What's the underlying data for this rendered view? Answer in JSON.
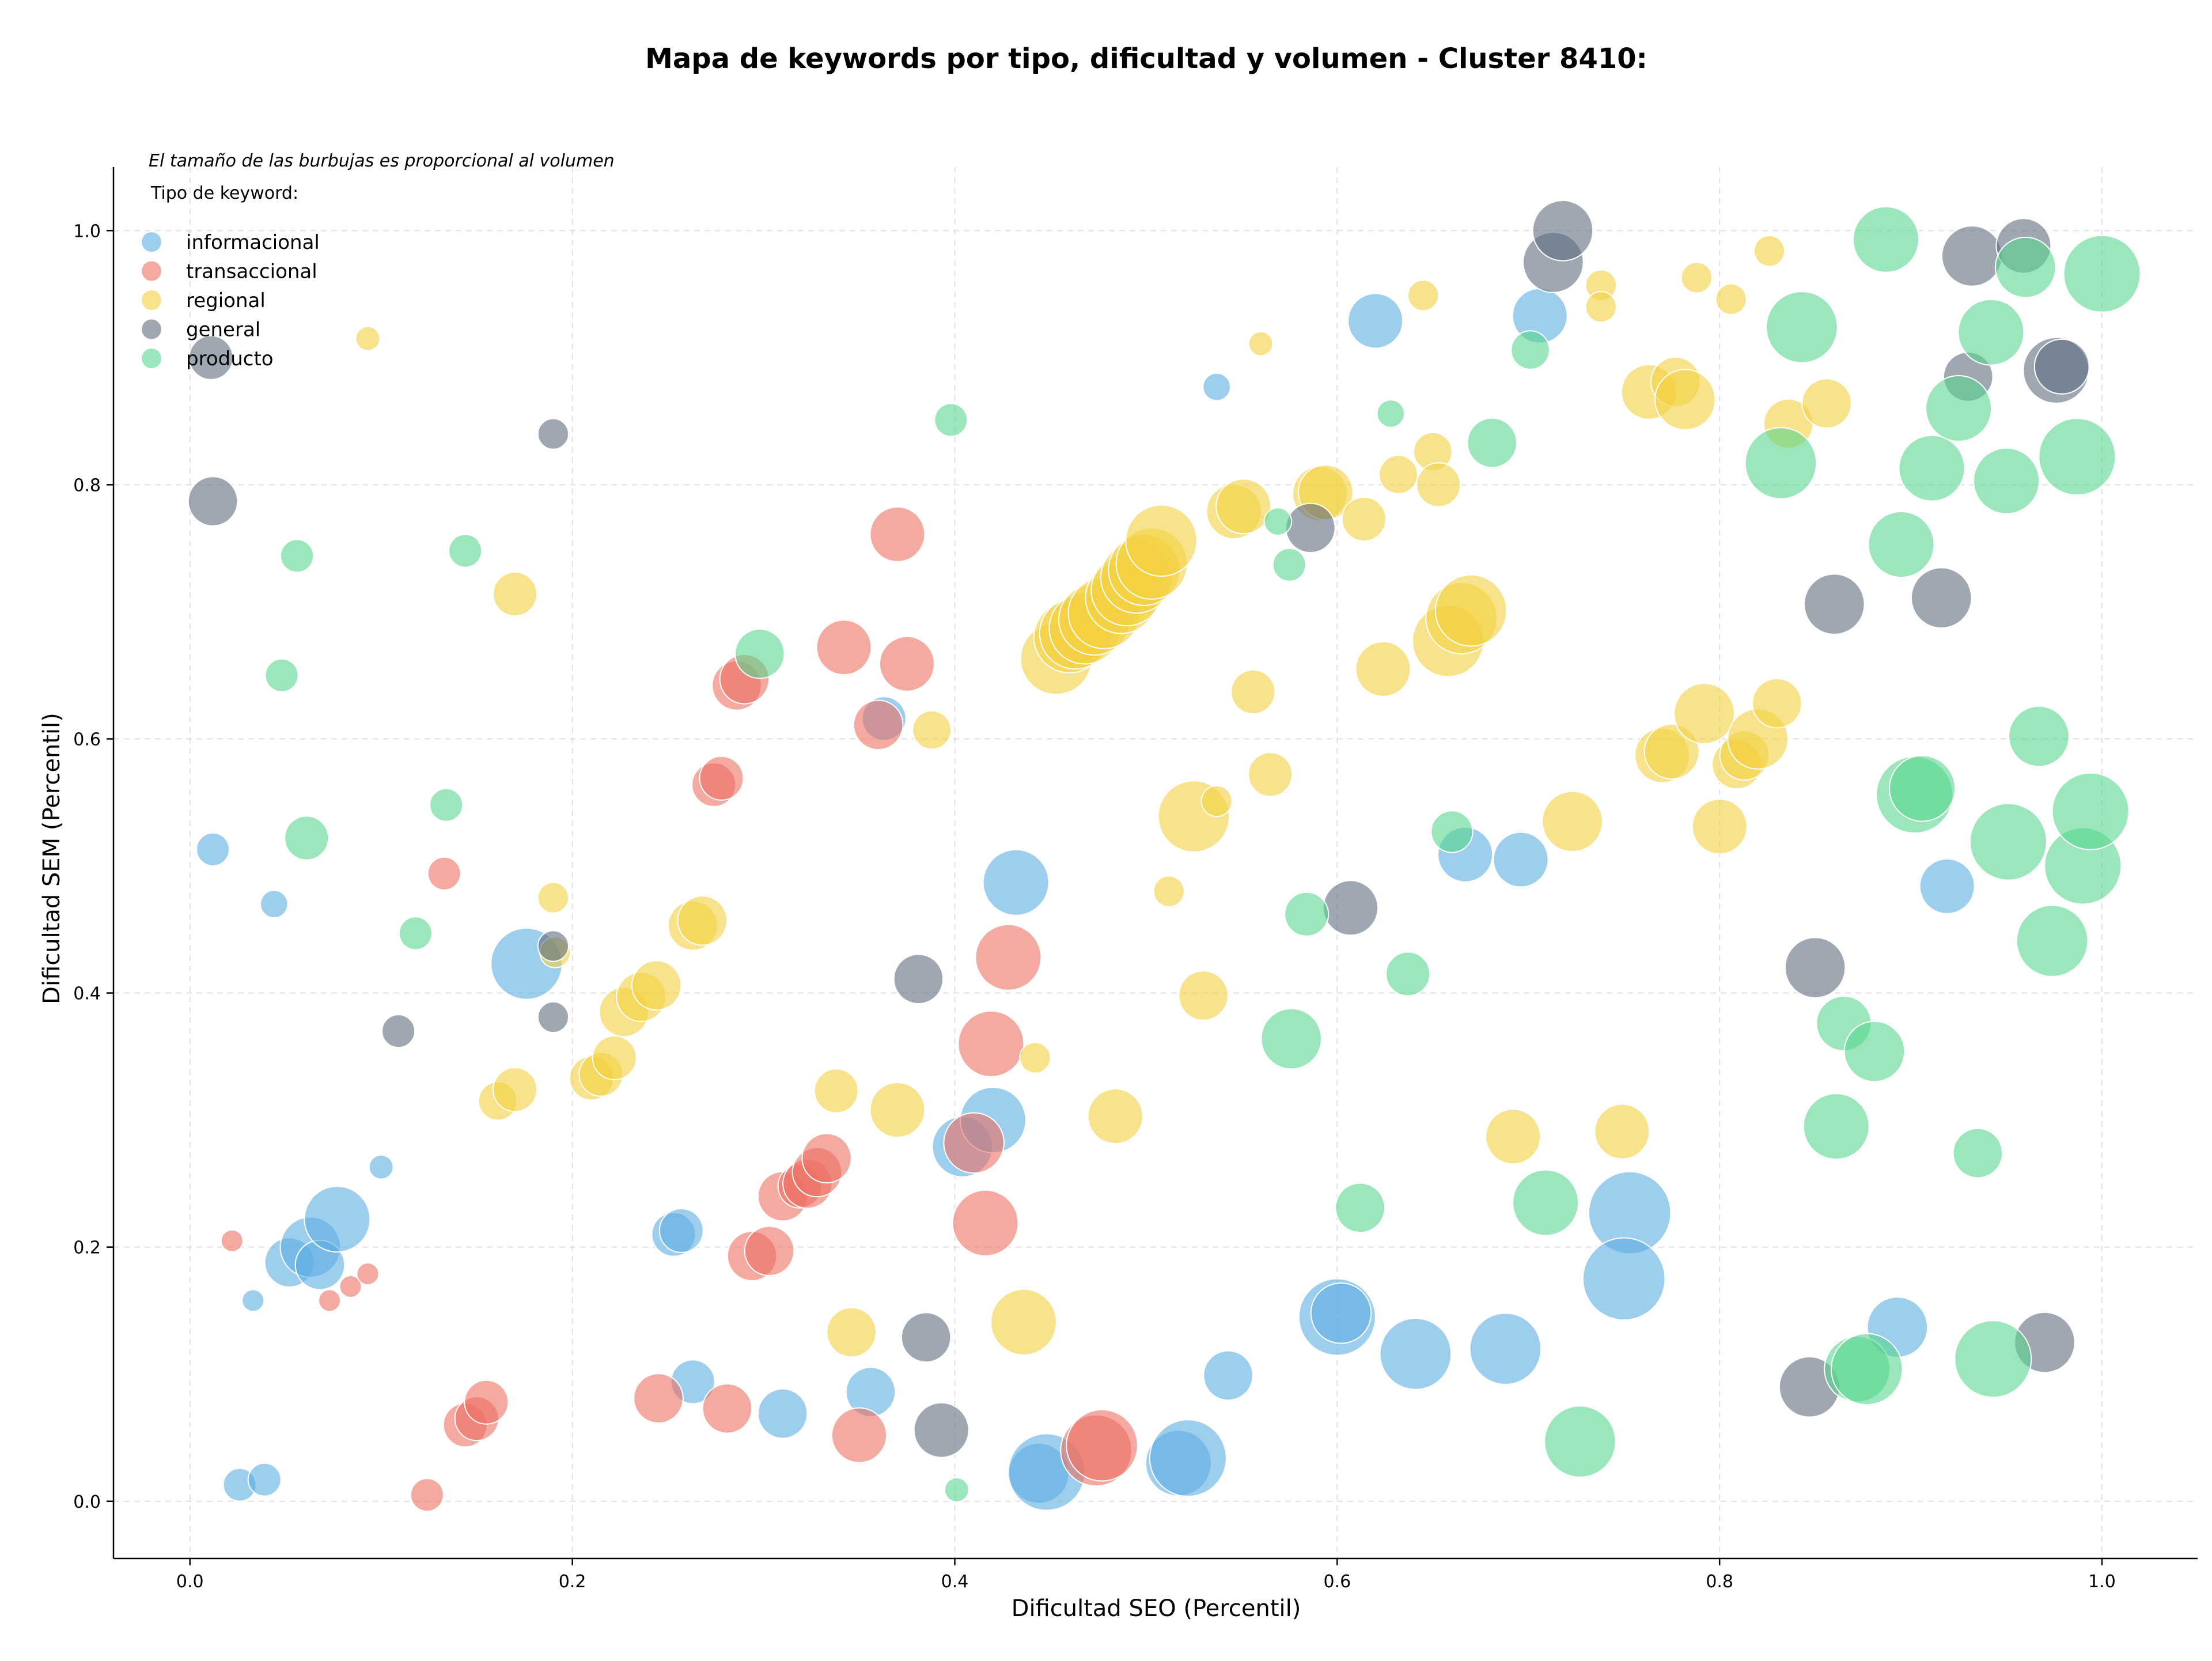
{
  "chart_data": {
    "type": "scatter",
    "title": "Mapa de keywords por tipo, dificultad y volumen - Cluster 8410:",
    "xlabel": "Dificultad SEO (Percentil)",
    "ylabel": "Dificultad SEM (Percentil)",
    "note": "El tamaño de las burbujas es proporcional al volumen",
    "xlim": [
      -0.04,
      1.05
    ],
    "ylim": [
      -0.045,
      1.05
    ],
    "x_ticks": [
      "0.0",
      "0.2",
      "0.4",
      "0.6",
      "0.8",
      "1.0"
    ],
    "y_ticks": [
      "0.0",
      "0.2",
      "0.4",
      "0.6",
      "0.8",
      "1.0"
    ],
    "grid": true,
    "legend": {
      "title": "Tipo de keyword:",
      "position": "top-left"
    },
    "series": [
      {
        "name": "informacional",
        "color": "#5DADE2",
        "points": [
          [
            0.012,
            0.513,
            0.3
          ],
          [
            0.044,
            0.47,
            0.25
          ],
          [
            0.026,
            0.013,
            0.3
          ],
          [
            0.039,
            0.017,
            0.3
          ],
          [
            0.033,
            0.158,
            0.2
          ],
          [
            0.052,
            0.188,
            0.45
          ],
          [
            0.063,
            0.2,
            0.55
          ],
          [
            0.068,
            0.186,
            0.45
          ],
          [
            0.077,
            0.222,
            0.6
          ],
          [
            0.1,
            0.263,
            0.22
          ],
          [
            0.176,
            0.423,
            0.65
          ],
          [
            0.253,
            0.21,
            0.4
          ],
          [
            0.257,
            0.213,
            0.4
          ],
          [
            0.263,
            0.094,
            0.4
          ],
          [
            0.31,
            0.069,
            0.45
          ],
          [
            0.356,
            0.086,
            0.45
          ],
          [
            0.363,
            0.616,
            0.4
          ],
          [
            0.404,
            0.279,
            0.55
          ],
          [
            0.42,
            0.3,
            0.6
          ],
          [
            0.432,
            0.487,
            0.6
          ],
          [
            0.444,
            0.022,
            0.55
          ],
          [
            0.448,
            0.023,
            0.7
          ],
          [
            0.517,
            0.03,
            0.6
          ],
          [
            0.522,
            0.034,
            0.7
          ],
          [
            0.543,
            0.099,
            0.45
          ],
          [
            0.537,
            0.877,
            0.25
          ],
          [
            0.6,
            0.145,
            0.7
          ],
          [
            0.602,
            0.148,
            0.55
          ],
          [
            0.62,
            0.929,
            0.5
          ],
          [
            0.641,
            0.116,
            0.65
          ],
          [
            0.667,
            0.509,
            0.5
          ],
          [
            0.688,
            0.12,
            0.65
          ],
          [
            0.696,
            0.505,
            0.5
          ],
          [
            0.706,
            0.933,
            0.5
          ],
          [
            0.753,
            0.227,
            0.75
          ],
          [
            0.75,
            0.175,
            0.75
          ],
          [
            0.919,
            0.484,
            0.5
          ],
          [
            0.893,
            0.137,
            0.55
          ]
        ]
      },
      {
        "name": "transaccional",
        "color": "#EC7063",
        "points": [
          [
            0.022,
            0.205,
            0.2
          ],
          [
            0.073,
            0.158,
            0.2
          ],
          [
            0.084,
            0.169,
            0.2
          ],
          [
            0.093,
            0.179,
            0.2
          ],
          [
            0.124,
            0.005,
            0.3
          ],
          [
            0.133,
            0.494,
            0.3
          ],
          [
            0.144,
            0.06,
            0.4
          ],
          [
            0.15,
            0.065,
            0.4
          ],
          [
            0.155,
            0.078,
            0.4
          ],
          [
            0.245,
            0.081,
            0.45
          ],
          [
            0.274,
            0.564,
            0.4
          ],
          [
            0.278,
            0.569,
            0.4
          ],
          [
            0.281,
            0.073,
            0.45
          ],
          [
            0.286,
            0.642,
            0.45
          ],
          [
            0.29,
            0.647,
            0.45
          ],
          [
            0.294,
            0.193,
            0.45
          ],
          [
            0.303,
            0.197,
            0.45
          ],
          [
            0.31,
            0.24,
            0.45
          ],
          [
            0.319,
            0.248,
            0.4
          ],
          [
            0.323,
            0.25,
            0.45
          ],
          [
            0.328,
            0.259,
            0.45
          ],
          [
            0.333,
            0.27,
            0.45
          ],
          [
            0.342,
            0.672,
            0.5
          ],
          [
            0.35,
            0.052,
            0.5
          ],
          [
            0.36,
            0.611,
            0.45
          ],
          [
            0.37,
            0.761,
            0.5
          ],
          [
            0.375,
            0.659,
            0.5
          ],
          [
            0.41,
            0.282,
            0.55
          ],
          [
            0.416,
            0.219,
            0.6
          ],
          [
            0.419,
            0.36,
            0.6
          ],
          [
            0.428,
            0.428,
            0.6
          ],
          [
            0.474,
            0.04,
            0.65
          ],
          [
            0.477,
            0.044,
            0.65
          ]
        ]
      },
      {
        "name": "regional",
        "color": "#F4D03F",
        "points": [
          [
            0.093,
            0.915,
            0.22
          ],
          [
            0.161,
            0.315,
            0.35
          ],
          [
            0.17,
            0.324,
            0.4
          ],
          [
            0.17,
            0.714,
            0.4
          ],
          [
            0.19,
            0.475,
            0.28
          ],
          [
            0.191,
            0.432,
            0.28
          ],
          [
            0.21,
            0.333,
            0.4
          ],
          [
            0.215,
            0.336,
            0.4
          ],
          [
            0.222,
            0.349,
            0.4
          ],
          [
            0.227,
            0.385,
            0.45
          ],
          [
            0.236,
            0.397,
            0.45
          ],
          [
            0.244,
            0.406,
            0.45
          ],
          [
            0.263,
            0.453,
            0.45
          ],
          [
            0.268,
            0.457,
            0.45
          ],
          [
            0.338,
            0.323,
            0.4
          ],
          [
            0.346,
            0.133,
            0.45
          ],
          [
            0.37,
            0.308,
            0.5
          ],
          [
            0.388,
            0.607,
            0.35
          ],
          [
            0.436,
            0.141,
            0.6
          ],
          [
            0.442,
            0.349,
            0.28
          ],
          [
            0.453,
            0.663,
            0.65
          ],
          [
            0.46,
            0.68,
            0.65
          ],
          [
            0.463,
            0.683,
            0.65
          ],
          [
            0.468,
            0.687,
            0.65
          ],
          [
            0.473,
            0.694,
            0.65
          ],
          [
            0.478,
            0.699,
            0.65
          ],
          [
            0.484,
            0.303,
            0.5
          ],
          [
            0.487,
            0.711,
            0.65
          ],
          [
            0.49,
            0.717,
            0.65
          ],
          [
            0.495,
            0.727,
            0.65
          ],
          [
            0.499,
            0.733,
            0.65
          ],
          [
            0.503,
            0.738,
            0.65
          ],
          [
            0.508,
            0.756,
            0.65
          ],
          [
            0.512,
            0.48,
            0.28
          ],
          [
            0.525,
            0.539,
            0.65
          ],
          [
            0.53,
            0.398,
            0.45
          ],
          [
            0.537,
            0.551,
            0.28
          ],
          [
            0.546,
            0.779,
            0.5
          ],
          [
            0.551,
            0.783,
            0.5
          ],
          [
            0.556,
            0.637,
            0.4
          ],
          [
            0.56,
            0.911,
            0.22
          ],
          [
            0.565,
            0.572,
            0.4
          ],
          [
            0.591,
            0.793,
            0.5
          ],
          [
            0.594,
            0.794,
            0.5
          ],
          [
            0.614,
            0.773,
            0.4
          ],
          [
            0.624,
            0.655,
            0.5
          ],
          [
            0.632,
            0.808,
            0.35
          ],
          [
            0.645,
            0.949,
            0.28
          ],
          [
            0.65,
            0.826,
            0.35
          ],
          [
            0.653,
            0.8,
            0.4
          ],
          [
            0.658,
            0.677,
            0.65
          ],
          [
            0.665,
            0.695,
            0.65
          ],
          [
            0.67,
            0.701,
            0.65
          ],
          [
            0.692,
            0.287,
            0.5
          ],
          [
            0.723,
            0.535,
            0.55
          ],
          [
            0.738,
            0.957,
            0.28
          ],
          [
            0.738,
            0.94,
            0.28
          ],
          [
            0.749,
            0.291,
            0.5
          ],
          [
            0.763,
            0.873,
            0.5
          ],
          [
            0.77,
            0.587,
            0.5
          ],
          [
            0.775,
            0.59,
            0.5
          ],
          [
            0.777,
            0.881,
            0.45
          ],
          [
            0.782,
            0.867,
            0.55
          ],
          [
            0.788,
            0.963,
            0.28
          ],
          [
            0.792,
            0.62,
            0.55
          ],
          [
            0.8,
            0.531,
            0.5
          ],
          [
            0.806,
            0.946,
            0.28
          ],
          [
            0.809,
            0.58,
            0.45
          ],
          [
            0.813,
            0.587,
            0.45
          ],
          [
            0.82,
            0.6,
            0.55
          ],
          [
            0.826,
            0.984,
            0.28
          ],
          [
            0.83,
            0.628,
            0.45
          ],
          [
            0.836,
            0.848,
            0.45
          ],
          [
            0.856,
            0.864,
            0.45
          ]
        ]
      },
      {
        "name": "general",
        "color": "#5D6D7E",
        "points": [
          [
            0.011,
            0.9,
            0.4
          ],
          [
            0.012,
            0.787,
            0.45
          ],
          [
            0.109,
            0.37,
            0.3
          ],
          [
            0.19,
            0.84,
            0.28
          ],
          [
            0.19,
            0.437,
            0.28
          ],
          [
            0.19,
            0.381,
            0.28
          ],
          [
            0.381,
            0.411,
            0.45
          ],
          [
            0.385,
            0.129,
            0.45
          ],
          [
            0.393,
            0.056,
            0.5
          ],
          [
            0.586,
            0.766,
            0.45
          ],
          [
            0.607,
            0.467,
            0.5
          ],
          [
            0.713,
            0.975,
            0.55
          ],
          [
            0.718,
            1.0,
            0.55
          ],
          [
            0.847,
            0.09,
            0.55
          ],
          [
            0.85,
            0.42,
            0.55
          ],
          [
            0.86,
            0.706,
            0.55
          ],
          [
            0.916,
            0.711,
            0.55
          ],
          [
            0.93,
            0.885,
            0.45
          ],
          [
            0.932,
            0.98,
            0.55
          ],
          [
            0.959,
            0.988,
            0.5
          ],
          [
            0.97,
            0.125,
            0.55
          ],
          [
            0.976,
            0.89,
            0.6
          ],
          [
            0.979,
            0.893,
            0.5
          ]
        ]
      },
      {
        "name": "producto",
        "color": "#58D68D",
        "points": [
          [
            0.048,
            0.65,
            0.3
          ],
          [
            0.056,
            0.744,
            0.3
          ],
          [
            0.061,
            0.522,
            0.4
          ],
          [
            0.118,
            0.447,
            0.3
          ],
          [
            0.134,
            0.548,
            0.3
          ],
          [
            0.144,
            0.748,
            0.3
          ],
          [
            0.298,
            0.667,
            0.45
          ],
          [
            0.398,
            0.851,
            0.3
          ],
          [
            0.401,
            0.009,
            0.22
          ],
          [
            0.569,
            0.771,
            0.25
          ],
          [
            0.575,
            0.737,
            0.3
          ],
          [
            0.576,
            0.364,
            0.55
          ],
          [
            0.584,
            0.462,
            0.4
          ],
          [
            0.612,
            0.231,
            0.45
          ],
          [
            0.628,
            0.856,
            0.25
          ],
          [
            0.637,
            0.415,
            0.4
          ],
          [
            0.66,
            0.527,
            0.38
          ],
          [
            0.681,
            0.833,
            0.45
          ],
          [
            0.701,
            0.906,
            0.35
          ],
          [
            0.709,
            0.235,
            0.6
          ],
          [
            0.727,
            0.047,
            0.65
          ],
          [
            0.832,
            0.817,
            0.65
          ],
          [
            0.843,
            0.924,
            0.65
          ],
          [
            0.861,
            0.295,
            0.6
          ],
          [
            0.865,
            0.376,
            0.5
          ],
          [
            0.872,
            0.104,
            0.6
          ],
          [
            0.877,
            0.104,
            0.65
          ],
          [
            0.881,
            0.354,
            0.55
          ],
          [
            0.887,
            0.993,
            0.6
          ],
          [
            0.895,
            0.753,
            0.6
          ],
          [
            0.902,
            0.556,
            0.7
          ],
          [
            0.906,
            0.561,
            0.6
          ],
          [
            0.911,
            0.813,
            0.6
          ],
          [
            0.925,
            0.86,
            0.6
          ],
          [
            0.935,
            0.274,
            0.45
          ],
          [
            0.942,
            0.92,
            0.6
          ],
          [
            0.943,
            0.112,
            0.7
          ],
          [
            0.951,
            0.519,
            0.7
          ],
          [
            0.95,
            0.803,
            0.6
          ],
          [
            0.96,
            0.971,
            0.55
          ],
          [
            0.967,
            0.602,
            0.55
          ],
          [
            0.974,
            0.441,
            0.65
          ],
          [
            0.987,
            0.822,
            0.7
          ],
          [
            0.99,
            0.5,
            0.7
          ],
          [
            0.994,
            0.543,
            0.7
          ],
          [
            1.0,
            0.966,
            0.7
          ]
        ]
      }
    ]
  }
}
